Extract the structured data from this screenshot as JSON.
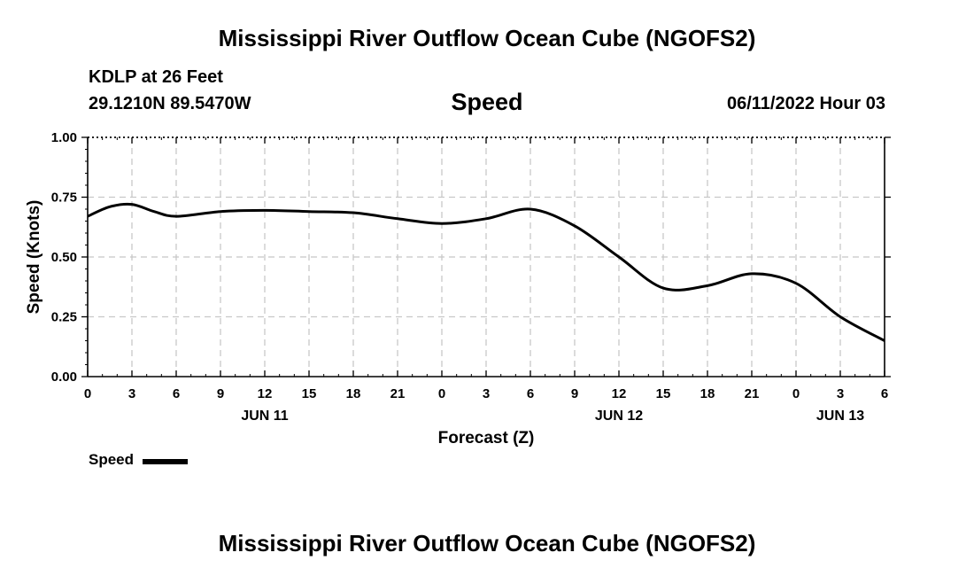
{
  "header": {
    "title": "Mississippi River Outflow Ocean Cube (NGOFS2)",
    "station": "KDLP at 26 Feet",
    "coords": "29.1210N  89.5470W",
    "subtitle": "Speed",
    "datetime": "06/11/2022 Hour 03"
  },
  "legend": {
    "label": "Speed"
  },
  "footer": {
    "title": "Mississippi River Outflow Ocean Cube (NGOFS2)"
  },
  "colors": {
    "line": "#000000",
    "grid": "#c8c8c8",
    "axis": "#000000"
  },
  "chart_data": {
    "type": "line",
    "title": "Speed",
    "xlabel": "Forecast (Z)",
    "ylabel": "Speed (Knots)",
    "xlim": [
      0,
      54
    ],
    "ylim": [
      0,
      1
    ],
    "grid": true,
    "legend_position": "bottom-left",
    "x_ticks": [
      {
        "x": 0,
        "label": "0"
      },
      {
        "x": 3,
        "label": "3"
      },
      {
        "x": 6,
        "label": "6"
      },
      {
        "x": 9,
        "label": "9"
      },
      {
        "x": 12,
        "label": "12"
      },
      {
        "x": 15,
        "label": "15"
      },
      {
        "x": 18,
        "label": "18"
      },
      {
        "x": 21,
        "label": "21"
      },
      {
        "x": 24,
        "label": "0"
      },
      {
        "x": 27,
        "label": "3"
      },
      {
        "x": 30,
        "label": "6"
      },
      {
        "x": 33,
        "label": "9"
      },
      {
        "x": 36,
        "label": "12"
      },
      {
        "x": 39,
        "label": "15"
      },
      {
        "x": 42,
        "label": "18"
      },
      {
        "x": 45,
        "label": "21"
      },
      {
        "x": 48,
        "label": "0"
      },
      {
        "x": 51,
        "label": "3"
      },
      {
        "x": 54,
        "label": "6"
      }
    ],
    "y_ticks": [
      {
        "y": 0,
        "label": "0.00"
      },
      {
        "y": 0.25,
        "label": "0.25"
      },
      {
        "y": 0.5,
        "label": "0.50"
      },
      {
        "y": 0.75,
        "label": "0.75"
      },
      {
        "y": 1.0,
        "label": "1.00"
      }
    ],
    "day_labels": [
      {
        "x": 12,
        "label": "JUN 11"
      },
      {
        "x": 36,
        "label": "JUN 12"
      },
      {
        "x": 51,
        "label": "JUN 13"
      }
    ],
    "series": [
      {
        "name": "Speed",
        "x": [
          0,
          1.5,
          3,
          4.5,
          6,
          9,
          12,
          15,
          18,
          21,
          24,
          27,
          30,
          33,
          36,
          39,
          42,
          45,
          48,
          51,
          54
        ],
        "values": [
          0.67,
          0.71,
          0.72,
          0.69,
          0.67,
          0.69,
          0.695,
          0.69,
          0.685,
          0.66,
          0.64,
          0.66,
          0.7,
          0.63,
          0.5,
          0.37,
          0.38,
          0.43,
          0.39,
          0.25,
          0.15
        ]
      }
    ]
  }
}
